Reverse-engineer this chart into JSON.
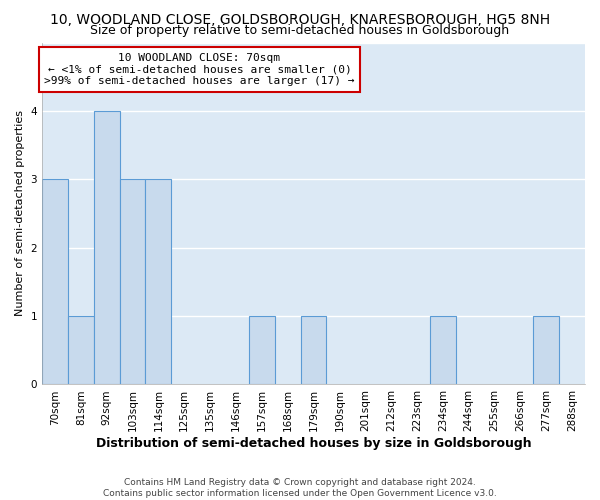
{
  "title": "10, WOODLAND CLOSE, GOLDSBOROUGH, KNARESBOROUGH, HG5 8NH",
  "subtitle": "Size of property relative to semi-detached houses in Goldsborough",
  "xlabel": "Distribution of semi-detached houses by size in Goldsborough",
  "ylabel": "Number of semi-detached properties",
  "categories": [
    "70sqm",
    "81sqm",
    "92sqm",
    "103sqm",
    "114sqm",
    "125sqm",
    "135sqm",
    "146sqm",
    "157sqm",
    "168sqm",
    "179sqm",
    "190sqm",
    "201sqm",
    "212sqm",
    "223sqm",
    "234sqm",
    "244sqm",
    "255sqm",
    "266sqm",
    "277sqm",
    "288sqm"
  ],
  "values": [
    3,
    1,
    4,
    3,
    3,
    0,
    0,
    0,
    1,
    0,
    1,
    0,
    0,
    0,
    0,
    1,
    0,
    0,
    0,
    1,
    0
  ],
  "bar_color": "#c8daed",
  "bar_edge_color": "#5b9bd5",
  "annotation_box_color": "#ffffff",
  "annotation_edge_color": "#cc0000",
  "annotation_title": "10 WOODLAND CLOSE: 70sqm",
  "annotation_line1": "← <1% of semi-detached houses are smaller (0)",
  "annotation_line2": ">99% of semi-detached houses are larger (17) →",
  "ylim": [
    0,
    5
  ],
  "yticks": [
    0,
    1,
    2,
    3,
    4,
    5
  ],
  "plot_bg_color": "#dce9f5",
  "fig_bg_color": "#ffffff",
  "grid_color": "#ffffff",
  "title_fontsize": 10,
  "subtitle_fontsize": 9,
  "xlabel_fontsize": 9,
  "ylabel_fontsize": 8,
  "tick_fontsize": 7.5,
  "annotation_fontsize": 8,
  "footer": "Contains HM Land Registry data © Crown copyright and database right 2024.\nContains public sector information licensed under the Open Government Licence v3.0."
}
